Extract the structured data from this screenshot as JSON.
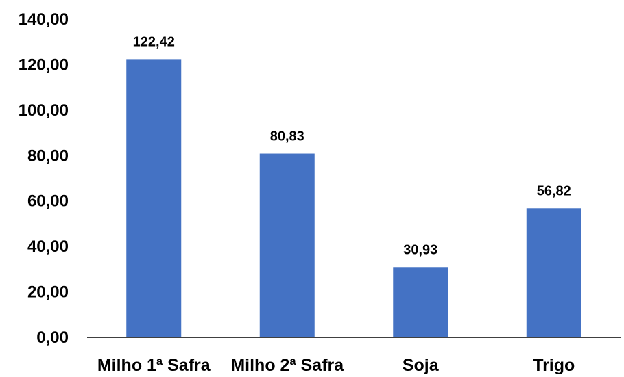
{
  "chart_data": {
    "type": "bar",
    "categories": [
      "Milho 1ª Safra",
      "Milho 2ª Safra",
      "Soja",
      "Trigo"
    ],
    "values": [
      122.42,
      80.83,
      30.93,
      56.82
    ],
    "data_labels": [
      "122,42",
      "80,83",
      "30,93",
      "56,82"
    ],
    "y_ticks": [
      0,
      20,
      40,
      60,
      80,
      100,
      120,
      140
    ],
    "y_tick_labels": [
      "0,00",
      "20,00",
      "40,00",
      "60,00",
      "80,00",
      "100,00",
      "120,00",
      "140,00"
    ],
    "ylim": [
      0,
      140
    ],
    "grid": false,
    "bar_color": "#4472C4"
  }
}
